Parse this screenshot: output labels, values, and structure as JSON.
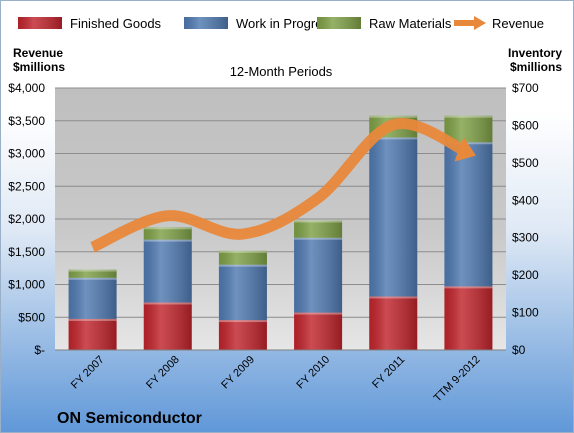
{
  "chart_data": {
    "type": "bar",
    "title": "12-Month Periods",
    "categories": [
      "FY 2007",
      "FY 2008",
      "FY 2009",
      "FY 2010",
      "FY 2011",
      "TTM 9-2012"
    ],
    "series": [
      {
        "name": "Finished Goods",
        "axis": "right",
        "color": "#c0242c",
        "values": [
          83,
          127,
          80,
          100,
          143,
          170
        ]
      },
      {
        "name": "Work in Progress",
        "axis": "right",
        "color": "#4f79b0",
        "values": [
          110,
          168,
          148,
          200,
          425,
          385
        ]
      },
      {
        "name": "Raw Materials",
        "axis": "right",
        "color": "#7ea046",
        "values": [
          22,
          33,
          37,
          46,
          58,
          71
        ]
      },
      {
        "name": "Revenue",
        "type": "line",
        "axis": "left",
        "color": "#e8883a",
        "values": [
          1570,
          2050,
          1770,
          2320,
          3440,
          3010
        ]
      }
    ],
    "stacked": true,
    "left_axis": {
      "label": [
        "Revenue",
        "$millions"
      ],
      "ylim": [
        0,
        4000
      ],
      "ticks": [
        0,
        500,
        1000,
        1500,
        2000,
        2500,
        3000,
        3500,
        4000
      ],
      "tick_labels": [
        "$-",
        "$500",
        "$1,000",
        "$1,500",
        "$2,000",
        "$2,500",
        "$3,000",
        "$3,500",
        "$4,000"
      ]
    },
    "right_axis": {
      "label": [
        "Inventory",
        "$millions"
      ],
      "ylim": [
        0,
        700
      ],
      "ticks": [
        0,
        100,
        200,
        300,
        400,
        500,
        600,
        700
      ],
      "tick_labels": [
        "$0",
        "$100",
        "$200",
        "$300",
        "$400",
        "$500",
        "$600",
        "$700"
      ]
    },
    "grid": true,
    "legend": "top",
    "colors": {
      "plot_bg": "#c0c0c0",
      "gridline": "#8c8c8c"
    }
  },
  "footer": {
    "company": "ON Semiconductor"
  }
}
